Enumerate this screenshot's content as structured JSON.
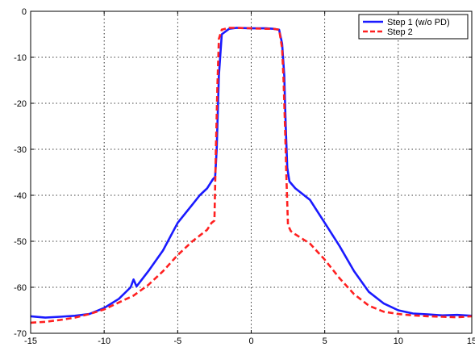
{
  "chart_data": {
    "type": "line",
    "title": "",
    "xlabel": "",
    "ylabel": "",
    "xlim": [
      -15,
      15
    ],
    "ylim": [
      -70,
      0
    ],
    "xticks": [
      -15,
      -10,
      -5,
      0,
      5,
      10,
      15
    ],
    "yticks": [
      0,
      -10,
      -20,
      -30,
      -40,
      -50,
      -60,
      -70
    ],
    "grid": true,
    "legend_position": "top-right",
    "series": [
      {
        "name": "Step 1 (w/o PD)",
        "color": "#1a1aff",
        "line_style": "solid",
        "x": [
          -15,
          -14,
          -13,
          -12,
          -11,
          -10,
          -9,
          -8.2,
          -8,
          -7.8,
          -7,
          -6,
          -5,
          -4,
          -3.5,
          -3,
          -2.6,
          -2.45,
          -2.35,
          -2.2,
          -2,
          -1.5,
          -1,
          0,
          1,
          1.5,
          1.9,
          2.1,
          2.25,
          2.35,
          2.45,
          2.6,
          3,
          4,
          5,
          6,
          7,
          8,
          9,
          10,
          11,
          12,
          13,
          14,
          15
        ],
        "y": [
          -66.3,
          -66.6,
          -66.4,
          -66.2,
          -65.8,
          -64.5,
          -62.5,
          -60,
          -58.3,
          -59.8,
          -56.5,
          -52,
          -46,
          -42,
          -40,
          -38.5,
          -36.5,
          -36,
          -30,
          -14,
          -5,
          -3.8,
          -3.6,
          -3.7,
          -3.7,
          -3.8,
          -4,
          -7,
          -14,
          -25,
          -34,
          -37,
          -38.5,
          -41,
          -46,
          -51,
          -56.5,
          -61,
          -63.5,
          -65,
          -65.7,
          -65.9,
          -66.1,
          -66,
          -66.2
        ]
      },
      {
        "name": "Step 2",
        "color": "#ff2020",
        "line_style": "dashed",
        "x": [
          -15,
          -14,
          -13,
          -12,
          -11,
          -10,
          -9,
          -8,
          -7,
          -6,
          -5,
          -4,
          -3,
          -2.7,
          -2.5,
          -2.4,
          -2.3,
          -2.2,
          -2,
          -1.5,
          -1,
          0,
          1,
          1.5,
          1.9,
          2.1,
          2.2,
          2.3,
          2.4,
          2.5,
          2.7,
          3,
          4,
          5,
          6,
          7,
          8,
          9,
          10,
          11,
          12,
          13,
          14,
          15
        ],
        "y": [
          -67.7,
          -67.5,
          -67.1,
          -66.6,
          -65.8,
          -64.8,
          -63.3,
          -61.8,
          -59.5,
          -56.5,
          -53,
          -50,
          -47.5,
          -46,
          -45.5,
          -30,
          -16,
          -6,
          -4,
          -3.6,
          -3.6,
          -3.7,
          -3.8,
          -3.8,
          -4,
          -8,
          -15,
          -25,
          -37,
          -46.5,
          -47.8,
          -48.5,
          -50.5,
          -54,
          -58,
          -61.5,
          -64,
          -65.3,
          -65.8,
          -66.1,
          -66.3,
          -66.4,
          -66.5,
          -66.3
        ]
      }
    ]
  }
}
